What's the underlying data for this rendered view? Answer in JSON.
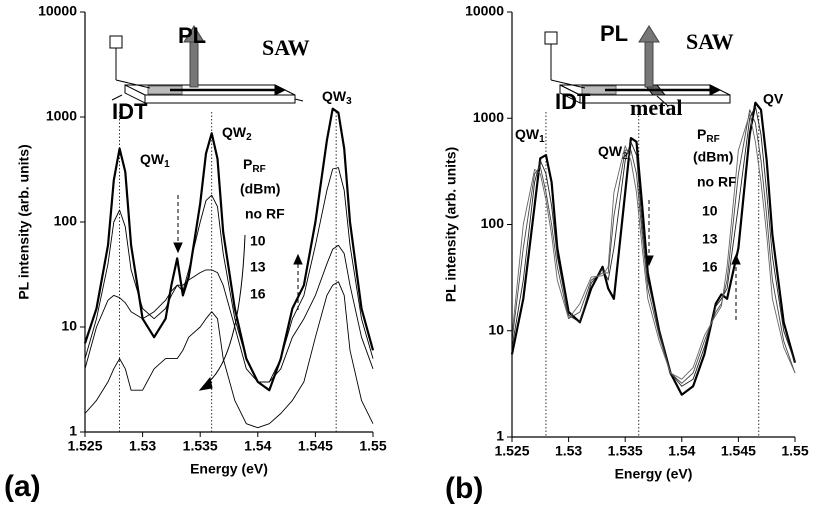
{
  "chart_data": [
    {
      "type": "line",
      "panel_label": "(a)",
      "xlabel": "Energy (eV)",
      "ylabel": "PL intensity (arb. units)",
      "xlim": [
        1.525,
        1.55
      ],
      "xticks": [
        1.525,
        1.53,
        1.535,
        1.54,
        1.545,
        1.55
      ],
      "ylim": [
        1,
        10000
      ],
      "yticks": [
        1,
        10,
        100,
        1000,
        10000
      ],
      "log_y": true,
      "inset_labels": [
        "PL",
        "SAW",
        "IDT"
      ],
      "annotations": [
        {
          "text": "QW",
          "sub": "1"
        },
        {
          "text": "QW",
          "sub": "2"
        },
        {
          "text": "QW",
          "sub": "3"
        }
      ],
      "legend_title": {
        "text": "P",
        "sub": "RF"
      },
      "legend_unit": "(dBm)",
      "vlines": [
        1.528,
        1.536,
        1.5468
      ],
      "x": [
        1.525,
        1.526,
        1.527,
        1.5275,
        1.528,
        1.5285,
        1.529,
        1.53,
        1.531,
        1.532,
        1.5325,
        1.533,
        1.5335,
        1.534,
        1.535,
        1.5355,
        1.536,
        1.5365,
        1.537,
        1.538,
        1.539,
        1.54,
        1.541,
        1.542,
        1.543,
        1.544,
        1.545,
        1.546,
        1.5465,
        1.547,
        1.5475,
        1.548,
        1.549,
        1.55
      ],
      "series": [
        {
          "name": "no RF",
          "color": "#000000",
          "width": 2.2,
          "values": [
            7,
            15,
            60,
            250,
            500,
            300,
            60,
            12,
            8,
            12,
            25,
            45,
            20,
            30,
            150,
            450,
            700,
            400,
            80,
            15,
            5,
            3,
            2.5,
            5,
            15,
            25,
            100,
            600,
            1200,
            1100,
            500,
            100,
            15,
            6
          ]
        },
        {
          "name": "10",
          "color": "#000000",
          "width": 0.9,
          "values": [
            5,
            12,
            40,
            100,
            130,
            90,
            35,
            15,
            12,
            15,
            20,
            25,
            22,
            35,
            100,
            160,
            180,
            140,
            50,
            12,
            5,
            3,
            3,
            5,
            12,
            20,
            60,
            200,
            320,
            330,
            200,
            60,
            12,
            5
          ]
        },
        {
          "name": "13",
          "color": "#000000",
          "width": 0.9,
          "values": [
            4,
            10,
            18,
            20,
            19,
            17,
            14,
            12,
            14,
            18,
            22,
            25,
            25,
            28,
            33,
            35,
            35,
            33,
            25,
            10,
            4,
            3,
            3,
            4,
            8,
            12,
            20,
            40,
            55,
            60,
            50,
            25,
            8,
            4
          ]
        },
        {
          "name": "16",
          "color": "#000000",
          "width": 0.9,
          "values": [
            1.5,
            2,
            3,
            4,
            5,
            4,
            2.5,
            2.5,
            4,
            5,
            5,
            5,
            6,
            8,
            10,
            12,
            14,
            12,
            5,
            2,
            1.2,
            1.1,
            1.2,
            1.5,
            2,
            3,
            8,
            20,
            25,
            27,
            20,
            6,
            2,
            1.2
          ]
        }
      ]
    },
    {
      "type": "line",
      "panel_label": "(b)",
      "xlabel": "Energy (eV)",
      "ylabel": "PL intensity (arb. units)",
      "xlim": [
        1.525,
        1.55
      ],
      "xticks": [
        1.525,
        1.53,
        1.535,
        1.54,
        1.545,
        1.55
      ],
      "ylim": [
        1,
        10000
      ],
      "yticks": [
        1,
        10,
        100,
        1000,
        10000
      ],
      "log_y": true,
      "inset_labels": [
        "PL",
        "SAW",
        "IDT",
        "metal"
      ],
      "annotations": [
        {
          "text": "QW",
          "sub": "1"
        },
        {
          "text": "QW",
          "sub": "2"
        },
        {
          "text": "QV"
        }
      ],
      "legend_title": {
        "text": "P",
        "sub": "RF"
      },
      "legend_unit": "(dBm)",
      "vlines": [
        1.528,
        1.5362,
        1.5468
      ],
      "x": [
        1.525,
        1.526,
        1.527,
        1.5275,
        1.528,
        1.5285,
        1.529,
        1.53,
        1.531,
        1.532,
        1.533,
        1.5335,
        1.534,
        1.535,
        1.5355,
        1.536,
        1.5365,
        1.537,
        1.538,
        1.539,
        1.54,
        1.541,
        1.542,
        1.543,
        1.5435,
        1.544,
        1.545,
        1.546,
        1.5465,
        1.547,
        1.5475,
        1.548,
        1.549,
        1.55
      ],
      "series": [
        {
          "name": "no RF",
          "color": "#000000",
          "width": 2.2,
          "values": [
            6,
            20,
            150,
            420,
            450,
            250,
            60,
            15,
            12,
            25,
            40,
            25,
            20,
            200,
            650,
            600,
            150,
            35,
            10,
            4,
            2.5,
            3,
            6,
            18,
            22,
            20,
            60,
            700,
            1400,
            1200,
            400,
            80,
            12,
            5
          ]
        },
        {
          "name": "10",
          "color": "#222222",
          "width": 0.9,
          "values": [
            7,
            30,
            250,
            400,
            300,
            150,
            50,
            14,
            12,
            28,
            38,
            30,
            60,
            400,
            600,
            450,
            100,
            30,
            10,
            4,
            3,
            3.5,
            7,
            17,
            20,
            25,
            150,
            1000,
            1300,
            700,
            200,
            50,
            10,
            5
          ]
        },
        {
          "name": "13",
          "color": "#444444",
          "width": 0.9,
          "values": [
            8,
            60,
            300,
            350,
            200,
            100,
            40,
            13,
            15,
            30,
            35,
            35,
            120,
            500,
            500,
            300,
            80,
            25,
            9,
            4,
            3.2,
            4,
            8,
            15,
            18,
            30,
            300,
            1200,
            900,
            400,
            120,
            30,
            8,
            4
          ]
        },
        {
          "name": "16",
          "color": "#666666",
          "width": 0.9,
          "values": [
            9,
            100,
            330,
            300,
            170,
            80,
            30,
            13,
            18,
            32,
            33,
            40,
            200,
            550,
            400,
            200,
            60,
            20,
            8,
            4,
            3.5,
            4.5,
            9,
            14,
            17,
            40,
            500,
            1100,
            600,
            250,
            80,
            20,
            7,
            4
          ]
        }
      ]
    }
  ]
}
